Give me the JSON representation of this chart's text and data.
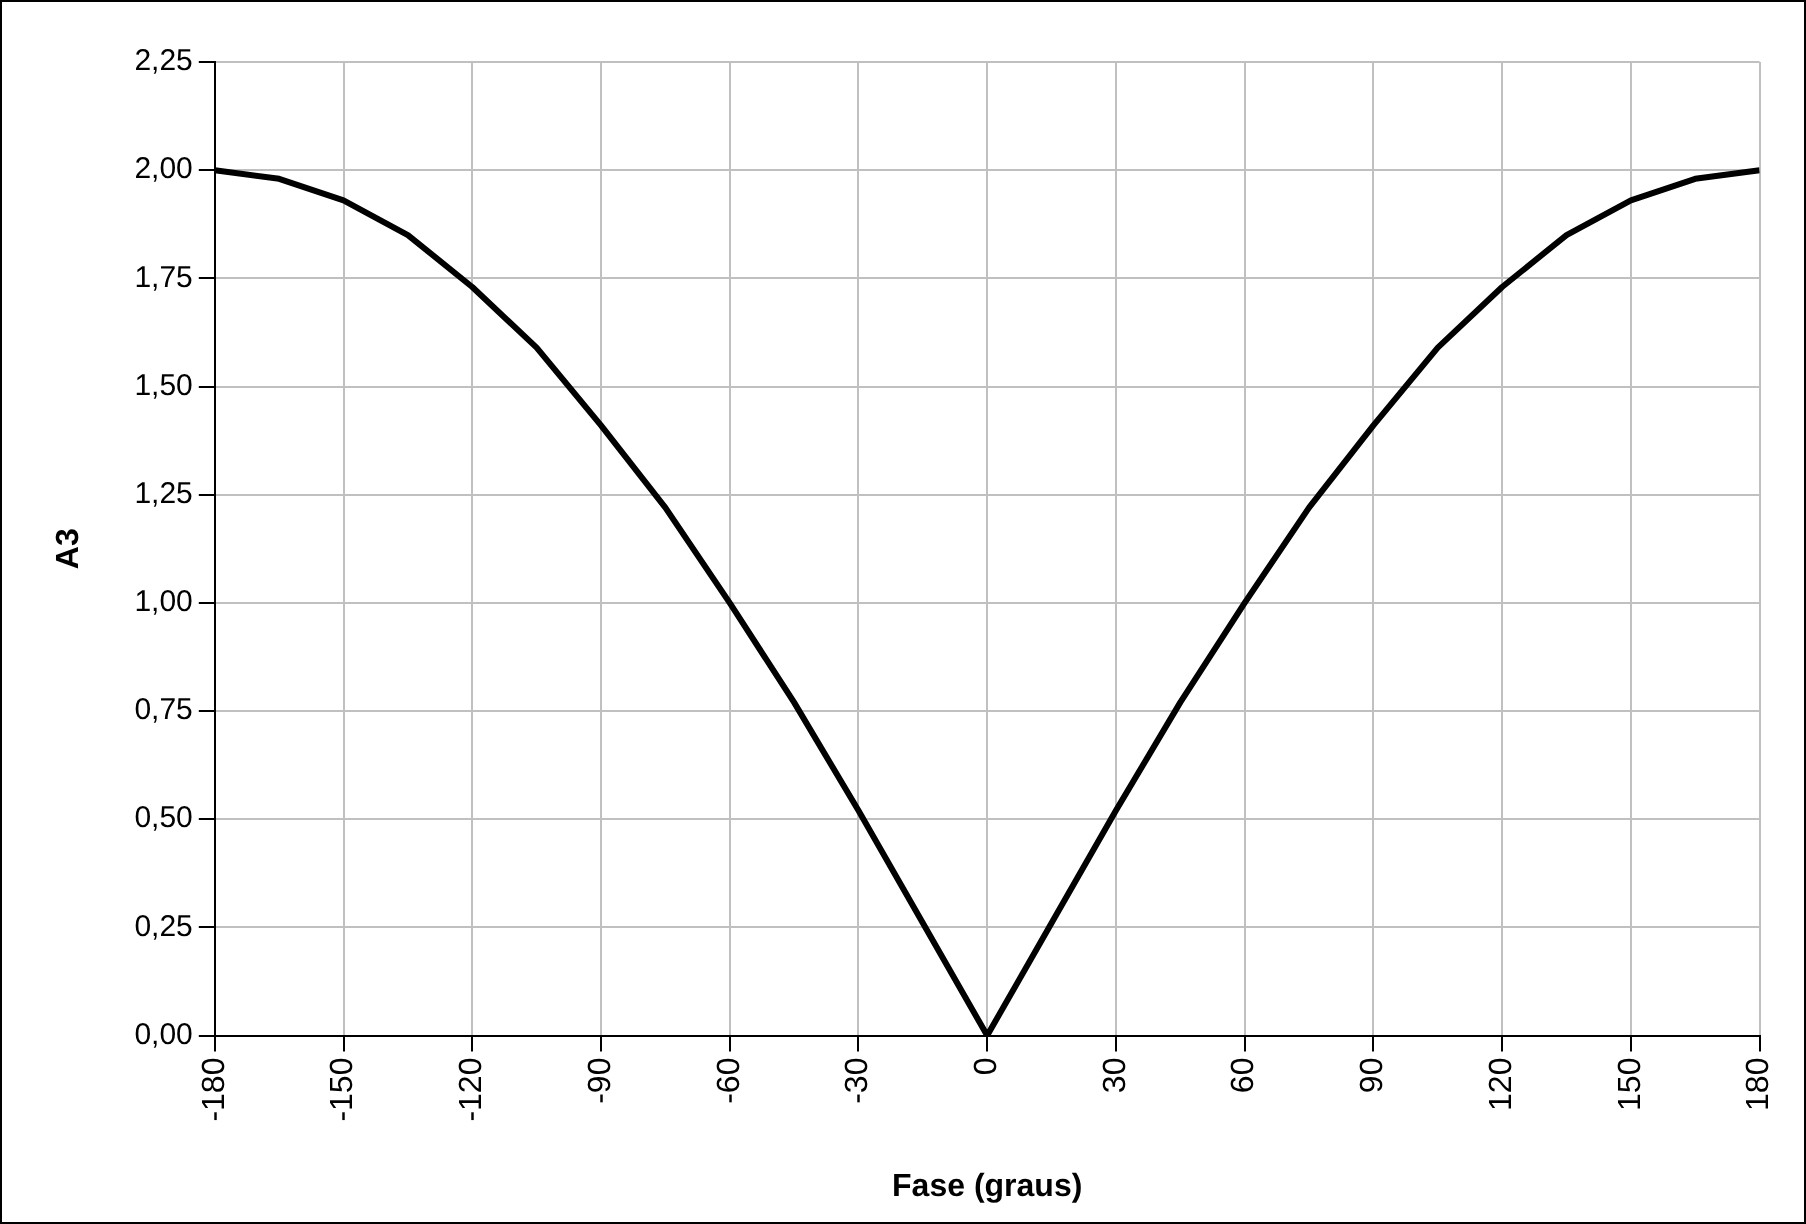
{
  "chart_data": {
    "type": "line",
    "xlabel": "Fase (graus)",
    "ylabel": "A3",
    "x": [
      -180,
      -165,
      -150,
      -135,
      -120,
      -105,
      -90,
      -75,
      -60,
      -45,
      -30,
      -15,
      0,
      15,
      30,
      45,
      60,
      75,
      90,
      105,
      120,
      135,
      150,
      165,
      180
    ],
    "series": [
      {
        "color": "#000000",
        "values": [
          2.0,
          1.98,
          1.93,
          1.85,
          1.73,
          1.59,
          1.41,
          1.22,
          1.0,
          0.77,
          0.52,
          0.26,
          0.0,
          0.26,
          0.52,
          0.77,
          1.0,
          1.22,
          1.41,
          1.59,
          1.73,
          1.85,
          1.93,
          1.98,
          2.0
        ]
      }
    ],
    "xlim": [
      -180,
      180
    ],
    "xticks": [
      -180,
      -150,
      -120,
      -90,
      -60,
      -30,
      0,
      30,
      60,
      90,
      120,
      150,
      180
    ],
    "ylim": [
      0,
      2.25
    ],
    "yticks": [
      {
        "value": 0,
        "label": "0,00"
      },
      {
        "value": 0.25,
        "label": "0,25"
      },
      {
        "value": 0.5,
        "label": "0,50"
      },
      {
        "value": 0.75,
        "label": "0,75"
      },
      {
        "value": 1,
        "label": "1,00"
      },
      {
        "value": 1.25,
        "label": "1,25"
      },
      {
        "value": 1.5,
        "label": "1,50"
      },
      {
        "value": 1.75,
        "label": "1,75"
      },
      {
        "value": 2,
        "label": "2,00"
      },
      {
        "value": 2.25,
        "label": "2,25"
      }
    ],
    "grid": true,
    "marker": "none",
    "line_style": "solid",
    "legend": false
  }
}
